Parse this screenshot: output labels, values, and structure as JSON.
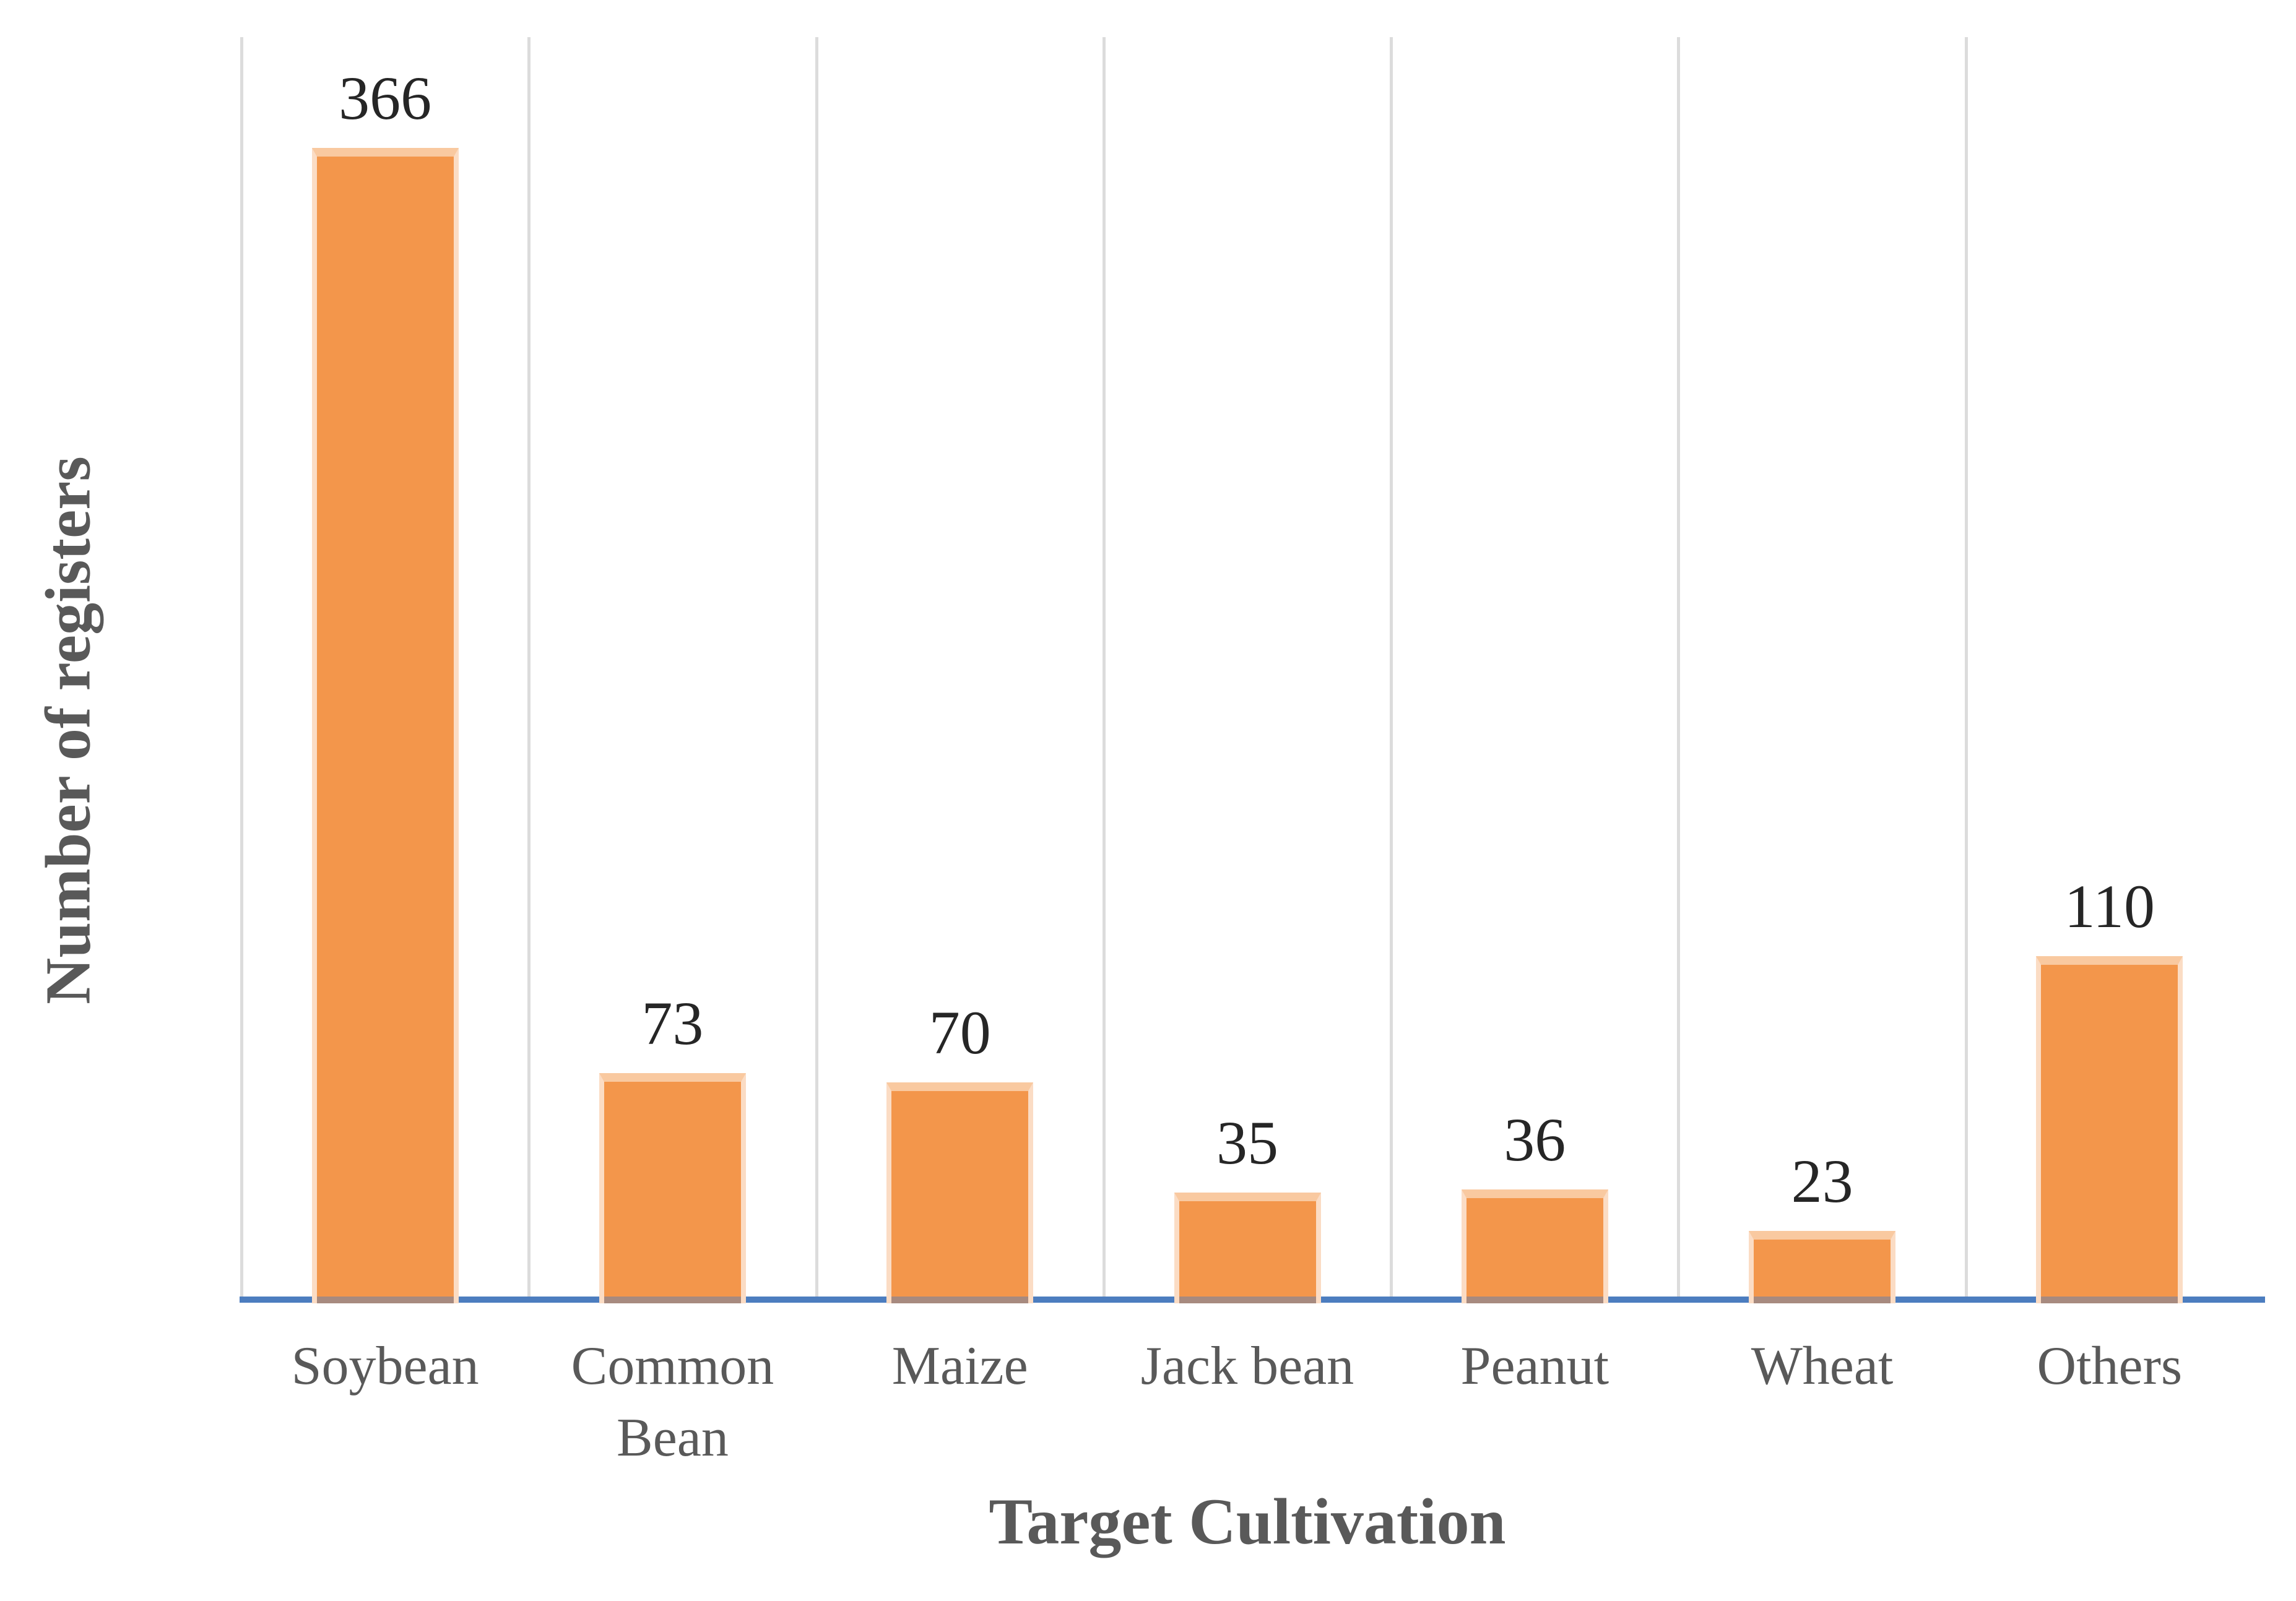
{
  "chart_data": {
    "type": "bar",
    "categories": [
      "Soybean",
      "Common Bean",
      "Maize",
      "Jack bean",
      "Peanut",
      "Wheat",
      "Others"
    ],
    "values": [
      366,
      73,
      70,
      35,
      36,
      23,
      110
    ],
    "title": "",
    "xlabel": "Target Cultivation",
    "ylabel": "Number of registers",
    "ylim": [
      0,
      400
    ],
    "y_axis_tick_labels_shown": false,
    "data_labels_shown": true,
    "legend_position": "none",
    "grid": "vertical category separators",
    "colors": {
      "bar_fill": "#F3964B",
      "bar_edge_top": "#F9C9A0",
      "bar_edge_side": "#FBDCC4",
      "baseline": "#4C7DBF",
      "gridline": "#DCDCDC",
      "value_label": "#262626",
      "category_label": "#595959",
      "axis_title": "#595959",
      "background": "#FFFFFF"
    }
  }
}
